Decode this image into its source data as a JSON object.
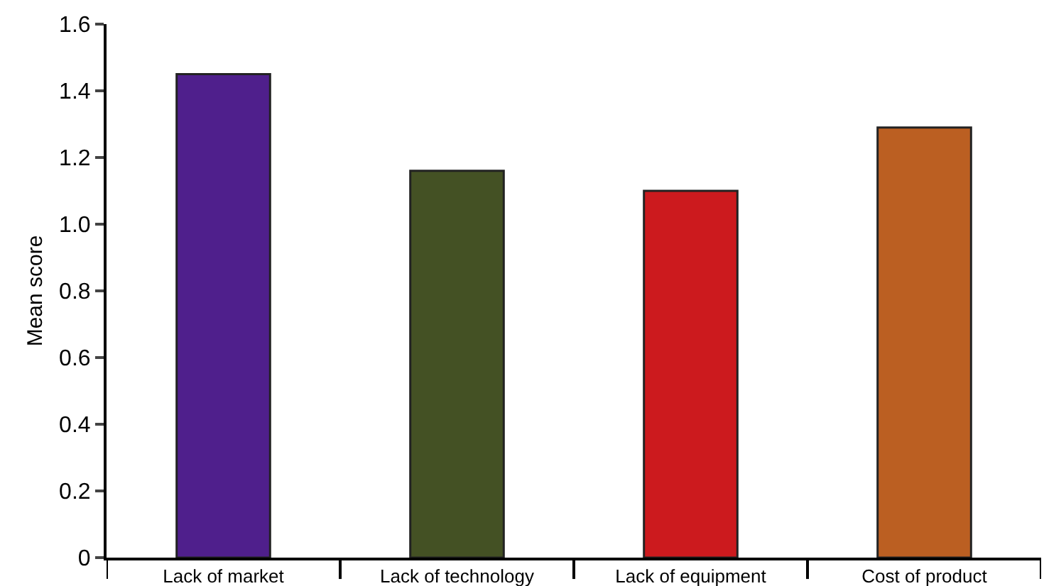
{
  "chart_data": {
    "type": "bar",
    "ylabel": "Mean score",
    "categories": [
      "Lack of market",
      "Lack of technology",
      "Lack of equipment",
      "Cost of product"
    ],
    "values": [
      1.45,
      1.16,
      1.1,
      1.29
    ],
    "colors": [
      "#4f1f8c",
      "#445124",
      "#cc1a1e",
      "#bb5f22"
    ],
    "ylim": [
      0,
      1.6
    ],
    "yticks": [
      {
        "value": 0,
        "label": "0"
      },
      0.2,
      0.4,
      0.6,
      0.8,
      {
        "value": 1,
        "label": "1.0"
      },
      1.2,
      1.4,
      1.6
    ],
    "grid": false,
    "legend": false
  }
}
